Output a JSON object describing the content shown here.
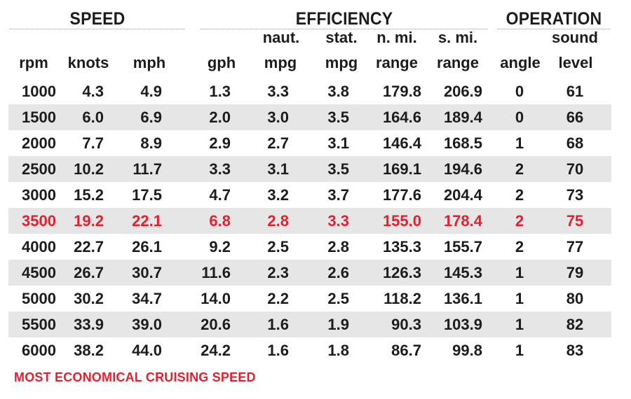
{
  "groups": {
    "speed": "SPEED",
    "efficiency": "EFFICIENCY",
    "operation": "OPERATION"
  },
  "headers": {
    "top": [
      "naut.",
      "stat.",
      "n. mi.",
      "s. mi.",
      "sound"
    ],
    "bottom": [
      "rpm",
      "knots",
      "mph",
      "gph",
      "mpg",
      "mpg",
      "range",
      "range",
      "angle",
      "level"
    ]
  },
  "rows": [
    [
      "1000",
      "4.3",
      "4.9",
      "1.3",
      "3.3",
      "3.8",
      "179.8",
      "206.9",
      "0",
      "61"
    ],
    [
      "1500",
      "6.0",
      "6.9",
      "2.0",
      "3.0",
      "3.5",
      "164.6",
      "189.4",
      "0",
      "66"
    ],
    [
      "2000",
      "7.7",
      "8.9",
      "2.9",
      "2.7",
      "3.1",
      "146.4",
      "168.5",
      "1",
      "68"
    ],
    [
      "2500",
      "10.2",
      "11.7",
      "3.3",
      "3.1",
      "3.5",
      "169.1",
      "194.6",
      "2",
      "70"
    ],
    [
      "3000",
      "15.2",
      "17.5",
      "4.7",
      "3.2",
      "3.7",
      "177.6",
      "204.4",
      "2",
      "73"
    ],
    [
      "3500",
      "19.2",
      "22.1",
      "6.8",
      "2.8",
      "3.3",
      "155.0",
      "178.4",
      "2",
      "75"
    ],
    [
      "4000",
      "22.7",
      "26.1",
      "9.2",
      "2.5",
      "2.8",
      "135.3",
      "155.7",
      "2",
      "77"
    ],
    [
      "4500",
      "26.7",
      "30.7",
      "11.6",
      "2.3",
      "2.6",
      "126.3",
      "145.3",
      "1",
      "79"
    ],
    [
      "5000",
      "30.2",
      "34.7",
      "14.0",
      "2.2",
      "2.5",
      "118.2",
      "136.1",
      "1",
      "80"
    ],
    [
      "5500",
      "33.9",
      "39.0",
      "20.6",
      "1.6",
      "1.9",
      "90.3",
      "103.9",
      "1",
      "82"
    ],
    [
      "6000",
      "38.2",
      "44.0",
      "24.2",
      "1.6",
      "1.8",
      "86.7",
      "99.8",
      "1",
      "83"
    ]
  ],
  "highlight_row": 5,
  "footnote": "MOST ECONOMICAL CRUISING SPEED",
  "colors": {
    "highlight": "#e5202e",
    "band": "#e6e6e6",
    "text": "#1c1c1c"
  }
}
